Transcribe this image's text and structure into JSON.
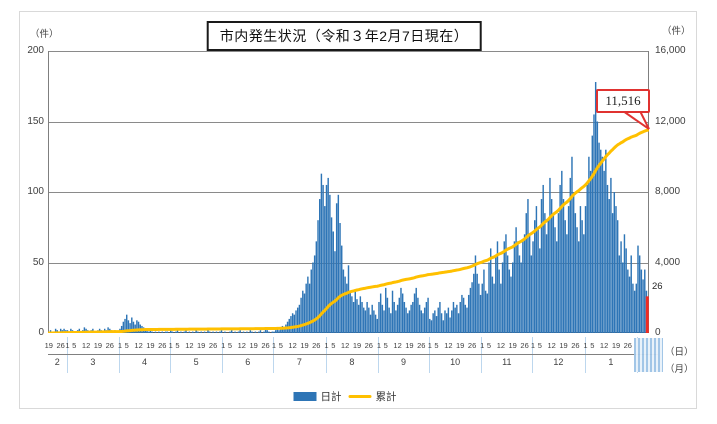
{
  "title": "市内発生状況（令和３年2月7日現在）",
  "left_axis": {
    "unit": "（件）",
    "ticks": [
      {
        "value": 200,
        "label": "200"
      },
      {
        "value": 150,
        "label": "150"
      },
      {
        "value": 100,
        "label": "100"
      },
      {
        "value": 50,
        "label": "50"
      },
      {
        "value": 0,
        "label": "0"
      }
    ]
  },
  "right_axis": {
    "unit": "（件）",
    "ticks": [
      {
        "value": 16000,
        "label": "16,000"
      },
      {
        "value": 12000,
        "label": "12,000"
      },
      {
        "value": 8000,
        "label": "8,000"
      },
      {
        "value": 4000,
        "label": "4,000"
      },
      {
        "value": 0,
        "label": "0"
      }
    ]
  },
  "x_axis": {
    "day_unit": "（日）",
    "month_unit": "（月）"
  },
  "annotation": {
    "label": "11,516",
    "last_value_label": "26"
  },
  "legend": {
    "daily_label": "日計",
    "cumulative_label": "累計"
  },
  "colors": {
    "bar": "#2e75b6",
    "bar_latest": "#ee2c24",
    "line": "#ffc000",
    "grid": "#8a8a8a",
    "axis": "#7f7f7f",
    "callout_border": "#e03230",
    "month_separator": "#bdd7ee"
  },
  "chart_data": {
    "type": "bar",
    "series": [
      {
        "name": "日計",
        "type": "bar"
      },
      {
        "name": "累計",
        "type": "line",
        "derived": "cumulative-sum-of-daily",
        "final_value": 11516
      }
    ],
    "y_left": {
      "label": "（件）",
      "max": 200,
      "grid": [
        50,
        100,
        150,
        200
      ]
    },
    "y_right": {
      "label": "（件）",
      "max": 16000
    },
    "months": [
      {
        "label": "2",
        "start_day": 19,
        "ticks": [
          19,
          26
        ],
        "values": [
          1,
          2,
          0,
          1,
          3,
          2,
          1,
          3,
          2,
          3,
          2
        ]
      },
      {
        "label": "3",
        "start_day": 1,
        "ticks": [
          1,
          5,
          12,
          19,
          26
        ],
        "values": [
          2,
          1,
          3,
          2,
          1,
          0,
          2,
          3,
          1,
          2,
          4,
          3,
          2,
          1,
          2,
          3,
          1,
          0,
          2,
          3,
          2,
          1,
          3,
          2,
          4,
          3,
          2,
          1,
          2,
          1,
          1
        ]
      },
      {
        "label": "4",
        "start_day": 1,
        "ticks": [
          1,
          5,
          12,
          19,
          26
        ],
        "values": [
          3,
          5,
          8,
          10,
          13,
          9,
          7,
          11,
          8,
          6,
          9,
          8,
          6,
          5,
          4,
          3,
          2,
          1,
          2,
          1,
          0,
          1,
          0,
          1,
          0,
          1,
          0,
          1,
          1,
          0
        ]
      },
      {
        "label": "5",
        "start_day": 1,
        "ticks": [
          1,
          5,
          12,
          19,
          26
        ],
        "values": [
          2,
          1,
          0,
          1,
          2,
          0,
          1,
          0,
          1,
          2,
          0,
          1,
          0,
          1,
          0,
          2,
          1,
          0,
          1,
          0,
          1,
          0,
          2,
          1,
          0,
          1,
          0,
          1,
          0,
          1,
          2
        ]
      },
      {
        "label": "6",
        "start_day": 1,
        "ticks": [
          1,
          5,
          12,
          19,
          26
        ],
        "values": [
          0,
          1,
          0,
          0,
          1,
          2,
          0,
          1,
          0,
          1,
          2,
          0,
          1,
          0,
          1,
          0,
          2,
          1,
          0,
          1,
          0,
          1,
          2,
          0,
          1,
          3,
          2,
          1,
          0,
          1
        ]
      },
      {
        "label": "7",
        "start_day": 1,
        "ticks": [
          1,
          5,
          12,
          19,
          26
        ],
        "values": [
          1,
          2,
          3,
          2,
          4,
          5,
          3,
          6,
          8,
          10,
          12,
          14,
          13,
          16,
          18,
          20,
          25,
          30,
          28,
          35,
          40,
          35,
          45,
          50,
          55,
          65,
          80,
          95,
          113,
          105,
          90
        ]
      },
      {
        "label": "8",
        "start_day": 1,
        "ticks": [
          1,
          5,
          12,
          19,
          26
        ],
        "values": [
          105,
          110,
          98,
          82,
          72,
          58,
          92,
          98,
          78,
          62,
          45,
          40,
          35,
          48,
          30,
          26,
          22,
          30,
          24,
          20,
          26,
          22,
          18,
          16,
          22,
          18,
          13,
          20,
          16,
          13,
          10
        ]
      },
      {
        "label": "9",
        "start_day": 1,
        "ticks": [
          1,
          5,
          12,
          19,
          26
        ],
        "values": [
          22,
          28,
          20,
          16,
          32,
          25,
          18,
          14,
          30,
          22,
          16,
          20,
          25,
          32,
          28,
          22,
          18,
          14,
          16,
          20,
          22,
          28,
          32,
          25,
          20,
          16,
          14,
          18,
          22,
          25
        ]
      },
      {
        "label": "10",
        "start_day": 1,
        "ticks": [
          1,
          5,
          12,
          19,
          26
        ],
        "values": [
          10,
          9,
          14,
          16,
          12,
          18,
          22,
          14,
          9,
          16,
          14,
          18,
          11,
          16,
          22,
          18,
          20,
          14,
          22,
          27,
          25,
          20,
          18,
          27,
          32,
          36,
          42,
          55,
          42,
          35,
          27
        ]
      },
      {
        "label": "11",
        "start_day": 1,
        "ticks": [
          1,
          5,
          12,
          19,
          26
        ],
        "values": [
          35,
          45,
          30,
          28,
          50,
          60,
          40,
          35,
          55,
          65,
          45,
          35,
          50,
          65,
          70,
          55,
          45,
          40,
          50,
          65,
          75,
          65,
          55,
          50,
          65,
          70,
          85,
          95,
          70,
          55
        ]
      },
      {
        "label": "12",
        "start_day": 1,
        "ticks": [
          1,
          5,
          12,
          19,
          26
        ],
        "values": [
          65,
          80,
          90,
          75,
          60,
          95,
          105,
          85,
          70,
          80,
          110,
          95,
          85,
          75,
          65,
          85,
          105,
          115,
          95,
          80,
          70,
          90,
          110,
          125,
          100,
          85,
          75,
          65,
          90,
          80,
          70
        ]
      },
      {
        "label": "1",
        "start_day": 1,
        "ticks": [
          1,
          5,
          12,
          19,
          26
        ],
        "values": [
          90,
          105,
          125,
          115,
          140,
          155,
          178,
          150,
          135,
          130,
          125,
          115,
          130,
          105,
          95,
          110,
          85,
          100,
          90,
          80,
          55,
          65,
          50,
          70,
          60,
          45,
          40,
          55,
          35,
          30,
          35
        ]
      },
      {
        "label": "",
        "start_day": 1,
        "ticks": [],
        "values": [
          62,
          55,
          45,
          38,
          45,
          30,
          26
        ]
      }
    ]
  }
}
